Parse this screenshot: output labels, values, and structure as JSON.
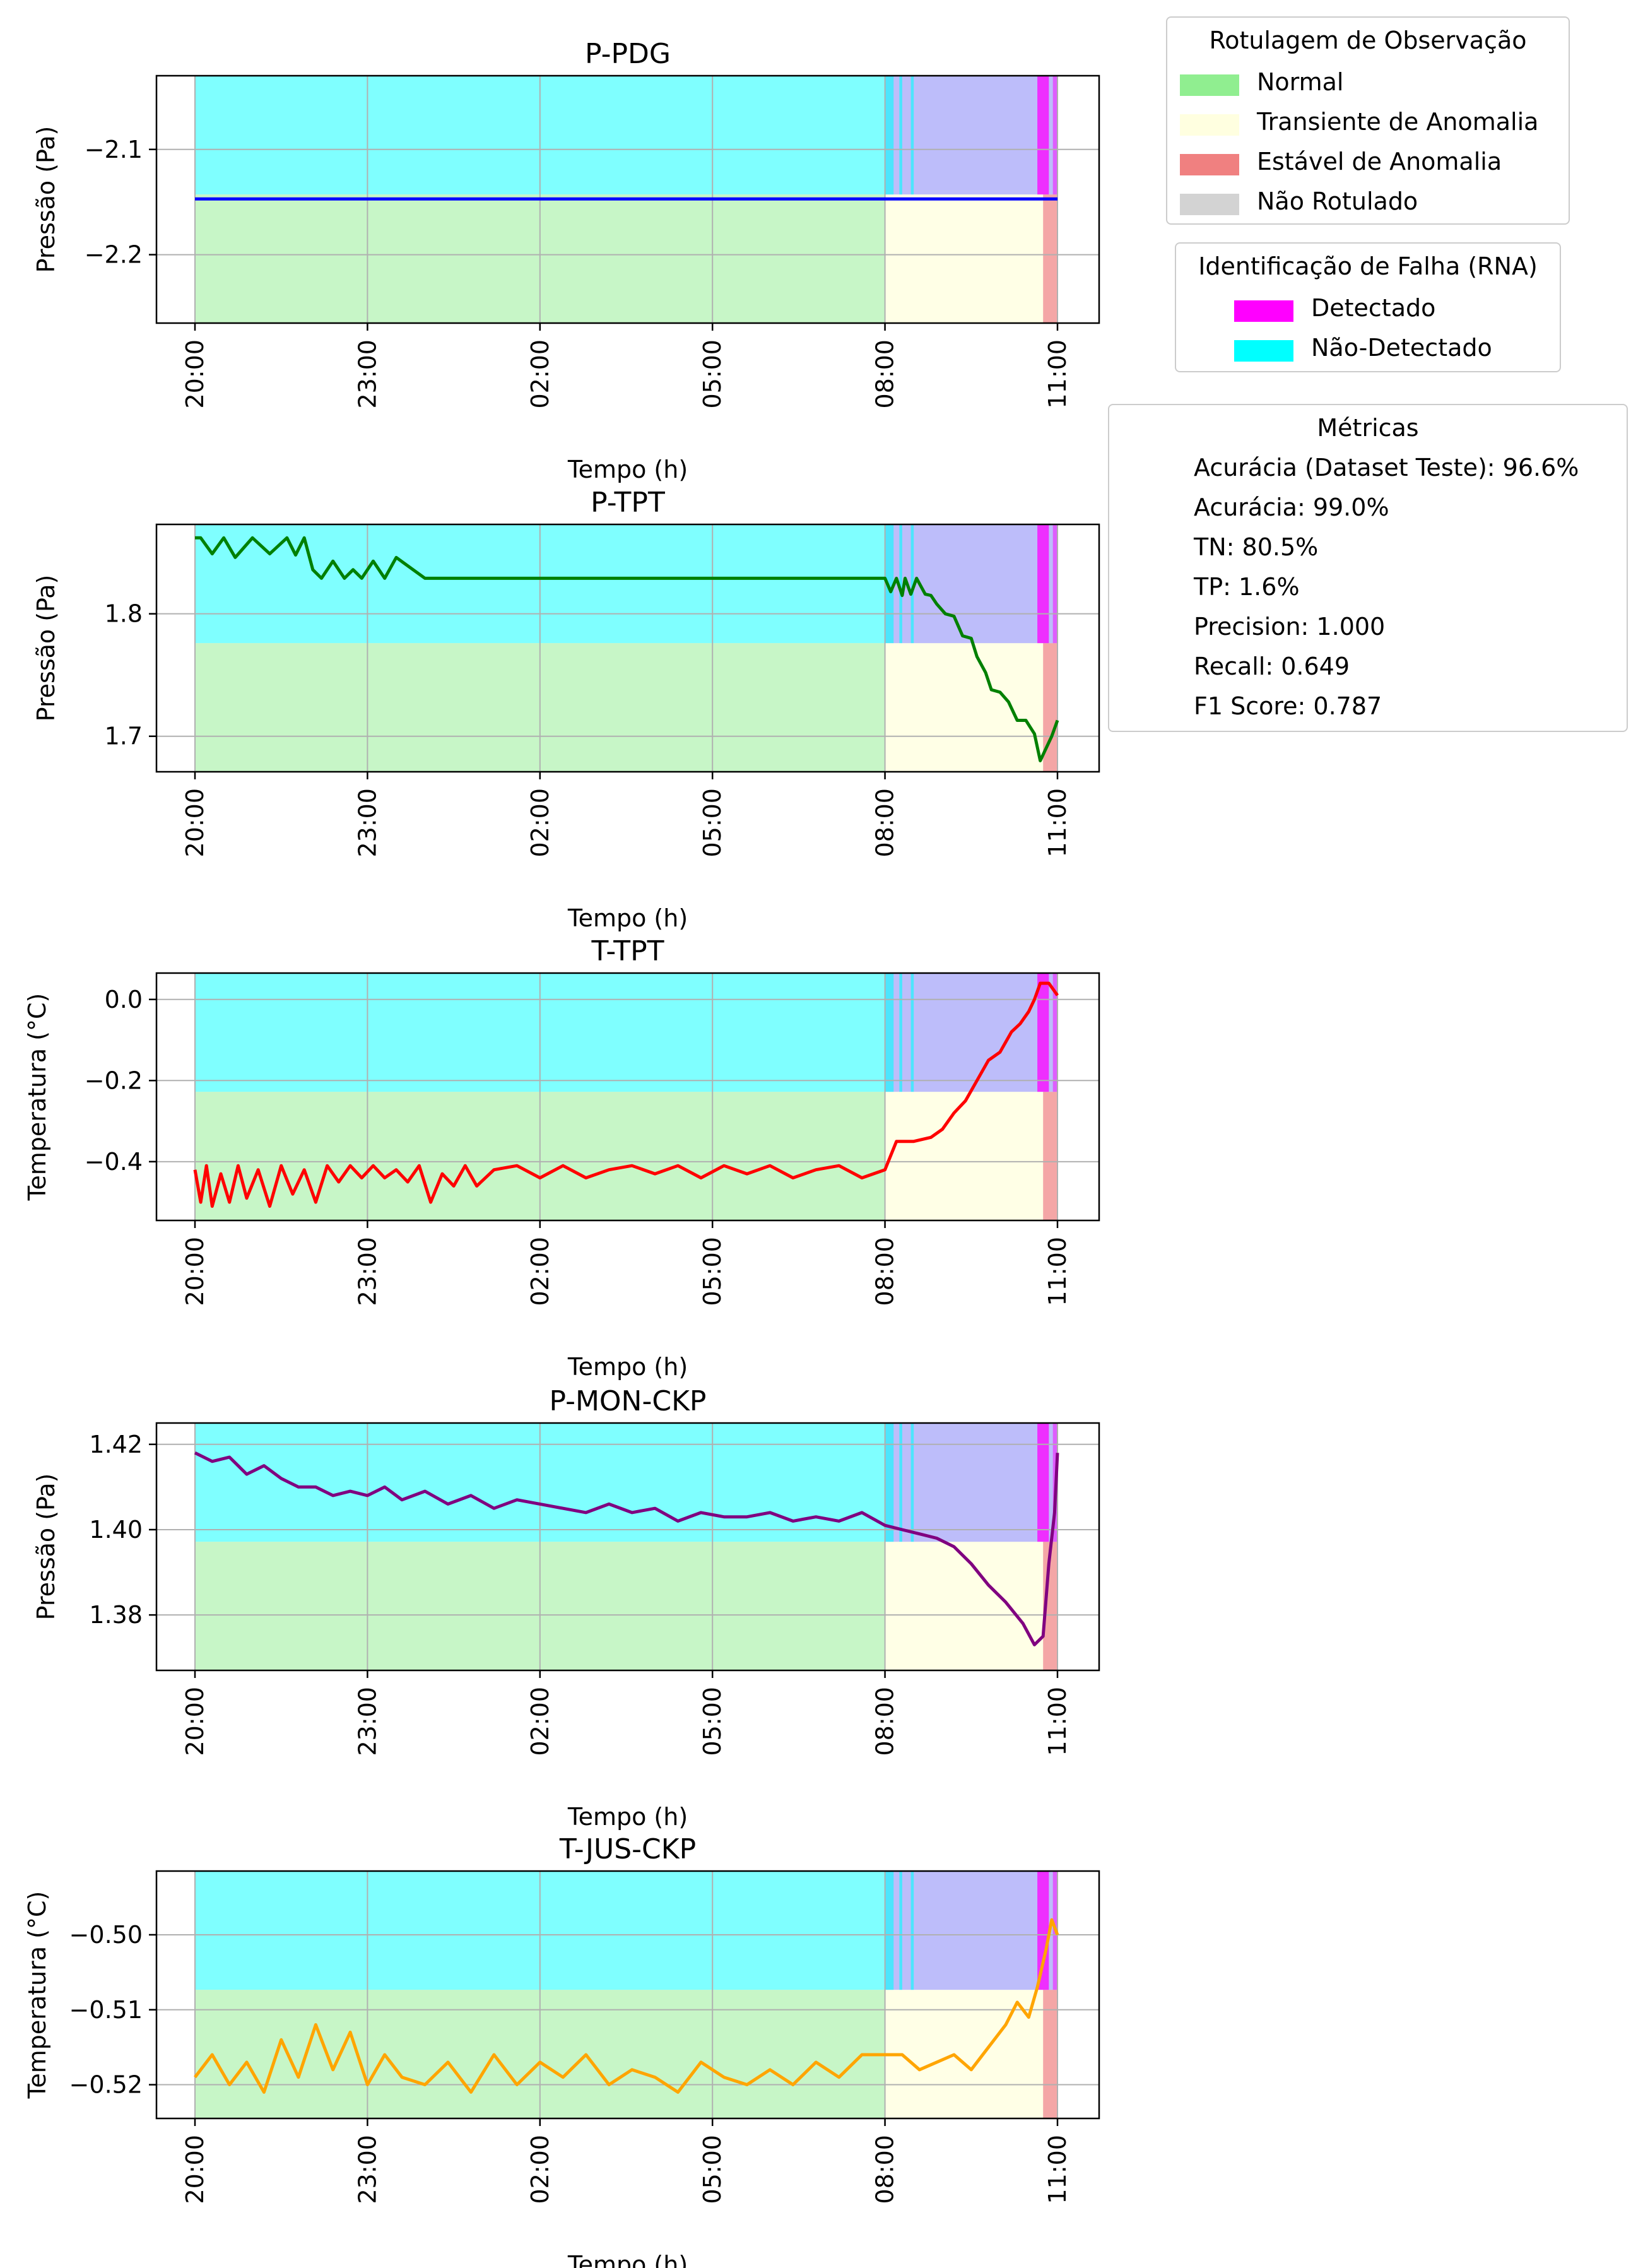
{
  "figure": {
    "time_ticks": [
      "20:00",
      "23:00",
      "02:00",
      "05:00",
      "08:00",
      "11:00"
    ],
    "x_axis_label": "Tempo (h)"
  },
  "legend_labels": {
    "title": "Rotulagem de Observação",
    "items": [
      {
        "label": "Normal",
        "color": "#90EE90"
      },
      {
        "label": "Transiente de Anomalia",
        "color": "#FFFFE0"
      },
      {
        "label": "Estável de Anomalia",
        "color": "#F08080"
      },
      {
        "label": "Não Rotulado",
        "color": "#D3D3D3"
      }
    ]
  },
  "legend_detection": {
    "title": "Identificação de Falha (RNA)",
    "items": [
      {
        "label": "Detectado",
        "color": "#FF00FF"
      },
      {
        "label": "Não-Detectado",
        "color": "#00FFFF"
      }
    ]
  },
  "metrics": {
    "title": "Métricas",
    "lines": [
      "Acurácia (Dataset Teste): 96.6%",
      "Acurácia: 99.0%",
      "TN: 80.5%",
      "TP: 1.6%",
      "Precision: 1.000",
      "Recall: 0.649",
      "F1 Score: 0.787"
    ]
  },
  "chart_data": [
    {
      "type": "line",
      "title": "P-PDG",
      "xlabel": "Tempo (h)",
      "ylabel": "Pressão (Pa)",
      "x_range_hours": [
        20,
        35
      ],
      "ylim": [
        -2.265,
        -2.03
      ],
      "yticks": [
        -2.2,
        -2.1
      ],
      "ytick_labels": [
        "−2.2",
        "−2.1"
      ],
      "line_color": "#0000FF",
      "series": [
        {
          "x": [
            20,
            35
          ],
          "y": [
            -2.147,
            -2.147
          ]
        }
      ],
      "grid": true
    },
    {
      "type": "line",
      "title": "P-TPT",
      "xlabel": "Tempo (h)",
      "ylabel": "Pressão (Pa)",
      "x_range_hours": [
        20,
        35
      ],
      "ylim": [
        1.671,
        1.873
      ],
      "yticks": [
        1.7,
        1.8
      ],
      "ytick_labels": [
        "1.7",
        "1.8"
      ],
      "line_color": "#008000",
      "series": [
        {
          "x": [
            20,
            20.1,
            20.3,
            20.5,
            20.7,
            21,
            21.3,
            21.6,
            21.75,
            21.9,
            22.05,
            22.2,
            22.4,
            22.6,
            22.75,
            22.9,
            23.1,
            23.3,
            23.5,
            24,
            26,
            28,
            30,
            31,
            32,
            32.1,
            32.2,
            32.3,
            32.35,
            32.45,
            32.55,
            32.7,
            32.8,
            32.9,
            33.05,
            33.2,
            33.35,
            33.5,
            33.6,
            33.75,
            33.85,
            34.0,
            34.15,
            34.3,
            34.45,
            34.6,
            34.7,
            34.8,
            34.9,
            35
          ],
          "y": [
            1.862,
            1.862,
            1.849,
            1.862,
            1.846,
            1.862,
            1.849,
            1.862,
            1.848,
            1.862,
            1.836,
            1.829,
            1.843,
            1.829,
            1.836,
            1.829,
            1.843,
            1.829,
            1.846,
            1.829,
            1.829,
            1.829,
            1.829,
            1.829,
            1.829,
            1.818,
            1.829,
            1.815,
            1.829,
            1.816,
            1.829,
            1.816,
            1.815,
            1.808,
            1.8,
            1.798,
            1.782,
            1.78,
            1.765,
            1.752,
            1.738,
            1.736,
            1.728,
            1.713,
            1.713,
            1.702,
            1.68,
            1.69,
            1.7,
            1.713
          ]
        }
      ],
      "grid": true
    },
    {
      "type": "line",
      "title": "T-TPT",
      "xlabel": "Tempo (h)",
      "ylabel": "Temperatura (°C)",
      "x_range_hours": [
        20,
        35
      ],
      "ylim": [
        -0.545,
        0.065
      ],
      "yticks": [
        -0.4,
        -0.2,
        0.0
      ],
      "ytick_labels": [
        "−0.4",
        "−0.2",
        "0.0"
      ],
      "line_color": "#FF0000",
      "series": [
        {
          "x": [
            20,
            20.1,
            20.2,
            20.3,
            20.45,
            20.6,
            20.75,
            20.9,
            21.1,
            21.3,
            21.5,
            21.7,
            21.9,
            22.1,
            22.3,
            22.5,
            22.7,
            22.9,
            23.1,
            23.3,
            23.5,
            23.7,
            23.9,
            24.1,
            24.3,
            24.5,
            24.7,
            24.9,
            25.2,
            25.6,
            26,
            26.4,
            26.8,
            27.2,
            27.6,
            28,
            28.4,
            28.8,
            29.2,
            29.6,
            30,
            30.4,
            30.8,
            31.2,
            31.6,
            32.0,
            32.2,
            32.5,
            32.8,
            33.0,
            33.2,
            33.4,
            33.6,
            33.8,
            34.0,
            34.2,
            34.35,
            34.5,
            34.6,
            34.7,
            34.85,
            35
          ],
          "y": [
            -0.42,
            -0.5,
            -0.41,
            -0.51,
            -0.43,
            -0.5,
            -0.41,
            -0.49,
            -0.42,
            -0.51,
            -0.41,
            -0.48,
            -0.42,
            -0.5,
            -0.41,
            -0.45,
            -0.41,
            -0.44,
            -0.41,
            -0.44,
            -0.42,
            -0.45,
            -0.41,
            -0.5,
            -0.43,
            -0.46,
            -0.41,
            -0.46,
            -0.42,
            -0.41,
            -0.44,
            -0.41,
            -0.44,
            -0.42,
            -0.41,
            -0.43,
            -0.41,
            -0.44,
            -0.41,
            -0.43,
            -0.41,
            -0.44,
            -0.42,
            -0.41,
            -0.44,
            -0.42,
            -0.35,
            -0.35,
            -0.34,
            -0.32,
            -0.28,
            -0.25,
            -0.2,
            -0.15,
            -0.13,
            -0.08,
            -0.06,
            -0.03,
            0.0,
            0.04,
            0.04,
            0.01
          ]
        }
      ],
      "grid": true
    },
    {
      "type": "line",
      "title": "P-MON-CKP",
      "xlabel": "Tempo (h)",
      "ylabel": "Pressão (Pa)",
      "x_range_hours": [
        20,
        35
      ],
      "ylim": [
        1.367,
        1.425
      ],
      "yticks": [
        1.38,
        1.4,
        1.42
      ],
      "ytick_labels": [
        "1.38",
        "1.40",
        "1.42"
      ],
      "line_color": "#800080",
      "series": [
        {
          "x": [
            20,
            20.3,
            20.6,
            20.9,
            21.2,
            21.5,
            21.8,
            22.1,
            22.4,
            22.7,
            23.0,
            23.3,
            23.6,
            24.0,
            24.4,
            24.8,
            25.2,
            25.6,
            26.0,
            26.4,
            26.8,
            27.2,
            27.6,
            28.0,
            28.4,
            28.8,
            29.2,
            29.6,
            30.0,
            30.4,
            30.8,
            31.2,
            31.6,
            32.0,
            32.3,
            32.6,
            32.9,
            33.2,
            33.5,
            33.8,
            34.1,
            34.4,
            34.6,
            34.75,
            34.85,
            34.95,
            35.0
          ],
          "y": [
            1.418,
            1.416,
            1.417,
            1.413,
            1.415,
            1.412,
            1.41,
            1.41,
            1.408,
            1.409,
            1.408,
            1.41,
            1.407,
            1.409,
            1.406,
            1.408,
            1.405,
            1.407,
            1.406,
            1.405,
            1.404,
            1.406,
            1.404,
            1.405,
            1.402,
            1.404,
            1.403,
            1.403,
            1.404,
            1.402,
            1.403,
            1.402,
            1.404,
            1.401,
            1.4,
            1.399,
            1.398,
            1.396,
            1.392,
            1.387,
            1.383,
            1.378,
            1.373,
            1.375,
            1.392,
            1.404,
            1.418
          ]
        }
      ],
      "grid": true
    },
    {
      "type": "line",
      "title": "T-JUS-CKP",
      "xlabel": "Tempo (h)",
      "ylabel": "Temperatura (°C)",
      "x_range_hours": [
        20,
        35
      ],
      "ylim": [
        -0.5245,
        -0.4915
      ],
      "yticks": [
        -0.52,
        -0.51,
        -0.5
      ],
      "ytick_labels": [
        "−0.52",
        "−0.51",
        "−0.50"
      ],
      "line_color": "#FFA500",
      "series": [
        {
          "x": [
            20,
            20.3,
            20.6,
            20.9,
            21.2,
            21.5,
            21.8,
            22.1,
            22.4,
            22.7,
            23.0,
            23.3,
            23.6,
            24.0,
            24.4,
            24.8,
            25.2,
            25.6,
            26.0,
            26.4,
            26.8,
            27.2,
            27.6,
            28.0,
            28.4,
            28.8,
            29.2,
            29.6,
            30.0,
            30.4,
            30.8,
            31.2,
            31.6,
            32.0,
            32.3,
            32.6,
            32.9,
            33.2,
            33.5,
            33.8,
            34.1,
            34.3,
            34.5,
            34.65,
            34.8,
            34.9,
            35.0
          ],
          "y": [
            -0.519,
            -0.516,
            -0.52,
            -0.517,
            -0.521,
            -0.514,
            -0.519,
            -0.512,
            -0.518,
            -0.513,
            -0.52,
            -0.516,
            -0.519,
            -0.52,
            -0.517,
            -0.521,
            -0.516,
            -0.52,
            -0.517,
            -0.519,
            -0.516,
            -0.52,
            -0.518,
            -0.519,
            -0.521,
            -0.517,
            -0.519,
            -0.52,
            -0.518,
            -0.52,
            -0.517,
            -0.519,
            -0.516,
            -0.516,
            -0.516,
            -0.518,
            -0.517,
            -0.516,
            -0.518,
            -0.515,
            -0.512,
            -0.509,
            -0.511,
            -0.507,
            -0.502,
            -0.498,
            -0.5
          ]
        }
      ],
      "grid": true
    }
  ]
}
